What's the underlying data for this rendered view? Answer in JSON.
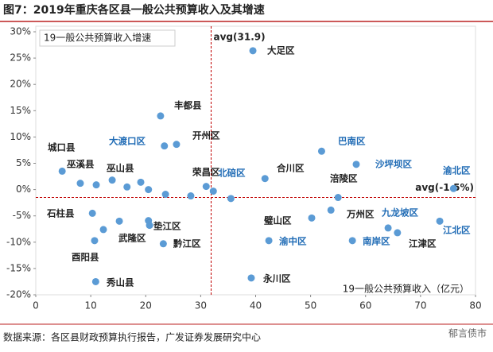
{
  "chart_data": {
    "type": "scatter",
    "title": "图7：2019年重庆各区县一般公共预算收入及其增速",
    "x_label": "19一般公共预算收入（亿元）",
    "y_label": "19一般公共预算收入增速",
    "xlim": [
      0,
      80
    ],
    "xticks": [
      0,
      10,
      20,
      30,
      40,
      50,
      60,
      70,
      80
    ],
    "ylim": [
      -20,
      30
    ],
    "yticks": [
      {
        "value": -20,
        "label": "-20%"
      },
      {
        "value": -15,
        "label": "-15%"
      },
      {
        "value": -10,
        "label": "-10%"
      },
      {
        "value": -5,
        "label": "-5%"
      },
      {
        "value": 0,
        "label": "0%"
      },
      {
        "value": 5,
        "label": "5%"
      },
      {
        "value": 10,
        "label": "10%"
      },
      {
        "value": 15,
        "label": "15%"
      },
      {
        "value": 20,
        "label": "20%"
      },
      {
        "value": 25,
        "label": "25%"
      },
      {
        "value": 30,
        "label": "30%"
      }
    ],
    "color": "#5b9bd5",
    "x": [
      39.5,
      22.7,
      23.4,
      25.6,
      52.0,
      58.3,
      76.0,
      4.8,
      8.1,
      11.0,
      13.9,
      16.6,
      19.1,
      20.5,
      31.0,
      32.3,
      35.5,
      41.7,
      55.0,
      23.6,
      28.2,
      10.3,
      15.2,
      20.5,
      20.7,
      12.3,
      10.7,
      23.2,
      10.9,
      39.2,
      50.2,
      53.7,
      42.4,
      57.6,
      64.1,
      65.8,
      73.5
    ],
    "y": [
      26.4,
      14.0,
      8.3,
      8.6,
      7.3,
      4.8,
      0.2,
      3.5,
      1.2,
      0.9,
      1.8,
      0.5,
      1.4,
      0.0,
      0.6,
      -0.3,
      -1.7,
      2.1,
      -1.5,
      -0.9,
      -1.2,
      -4.5,
      -6.0,
      -5.9,
      -6.8,
      -7.6,
      -9.7,
      -10.3,
      -17.5,
      -16.8,
      -5.4,
      -3.9,
      -9.7,
      -9.7,
      -7.3,
      -8.2,
      -6.0
    ],
    "labels": [
      "大足区",
      "丰都县",
      "大渡口区",
      "开州区",
      "巴南区",
      "沙坪坝区",
      "渝北区",
      "城口县",
      "巫溪县",
      "巫山县",
      null,
      null,
      null,
      null,
      "荣昌区",
      null,
      "北碚区",
      "合川区",
      "涪陵区",
      null,
      null,
      "石柱县",
      null,
      null,
      "垫江区",
      "武隆区",
      "酉阳县",
      "黔江区",
      "秀山县",
      "永川区",
      "璧山区",
      "万州区",
      "渝中区",
      "南岸区",
      "九龙坡区",
      "江津区",
      "江北区"
    ],
    "label_colors": [
      "#222",
      "#222",
      "#1f6bb5",
      "#222",
      "#1f6bb5",
      "#1f6bb5",
      "#1f6bb5",
      "#222",
      "#222",
      "#222",
      null,
      null,
      null,
      null,
      "#222",
      null,
      "#1f6bb5",
      "#222",
      "#222",
      null,
      null,
      "#222",
      null,
      null,
      "#222",
      "#222",
      "#222",
      "#222",
      "#222",
      "#222",
      "#222",
      "#222",
      "#1f6bb5",
      "#1f6bb5",
      "#1f6bb5",
      "#222",
      "#1f6bb5"
    ],
    "ref_x": {
      "value": 31.9,
      "label": "avg(31.9)"
    },
    "ref_y": {
      "value": -1.5,
      "label": "avg(-1.5%)"
    },
    "ref_color": "#c00000",
    "source": "数据来源：各区县财政预算执行报告，广发证券发展研究中心",
    "watermark": "郁言债市"
  }
}
